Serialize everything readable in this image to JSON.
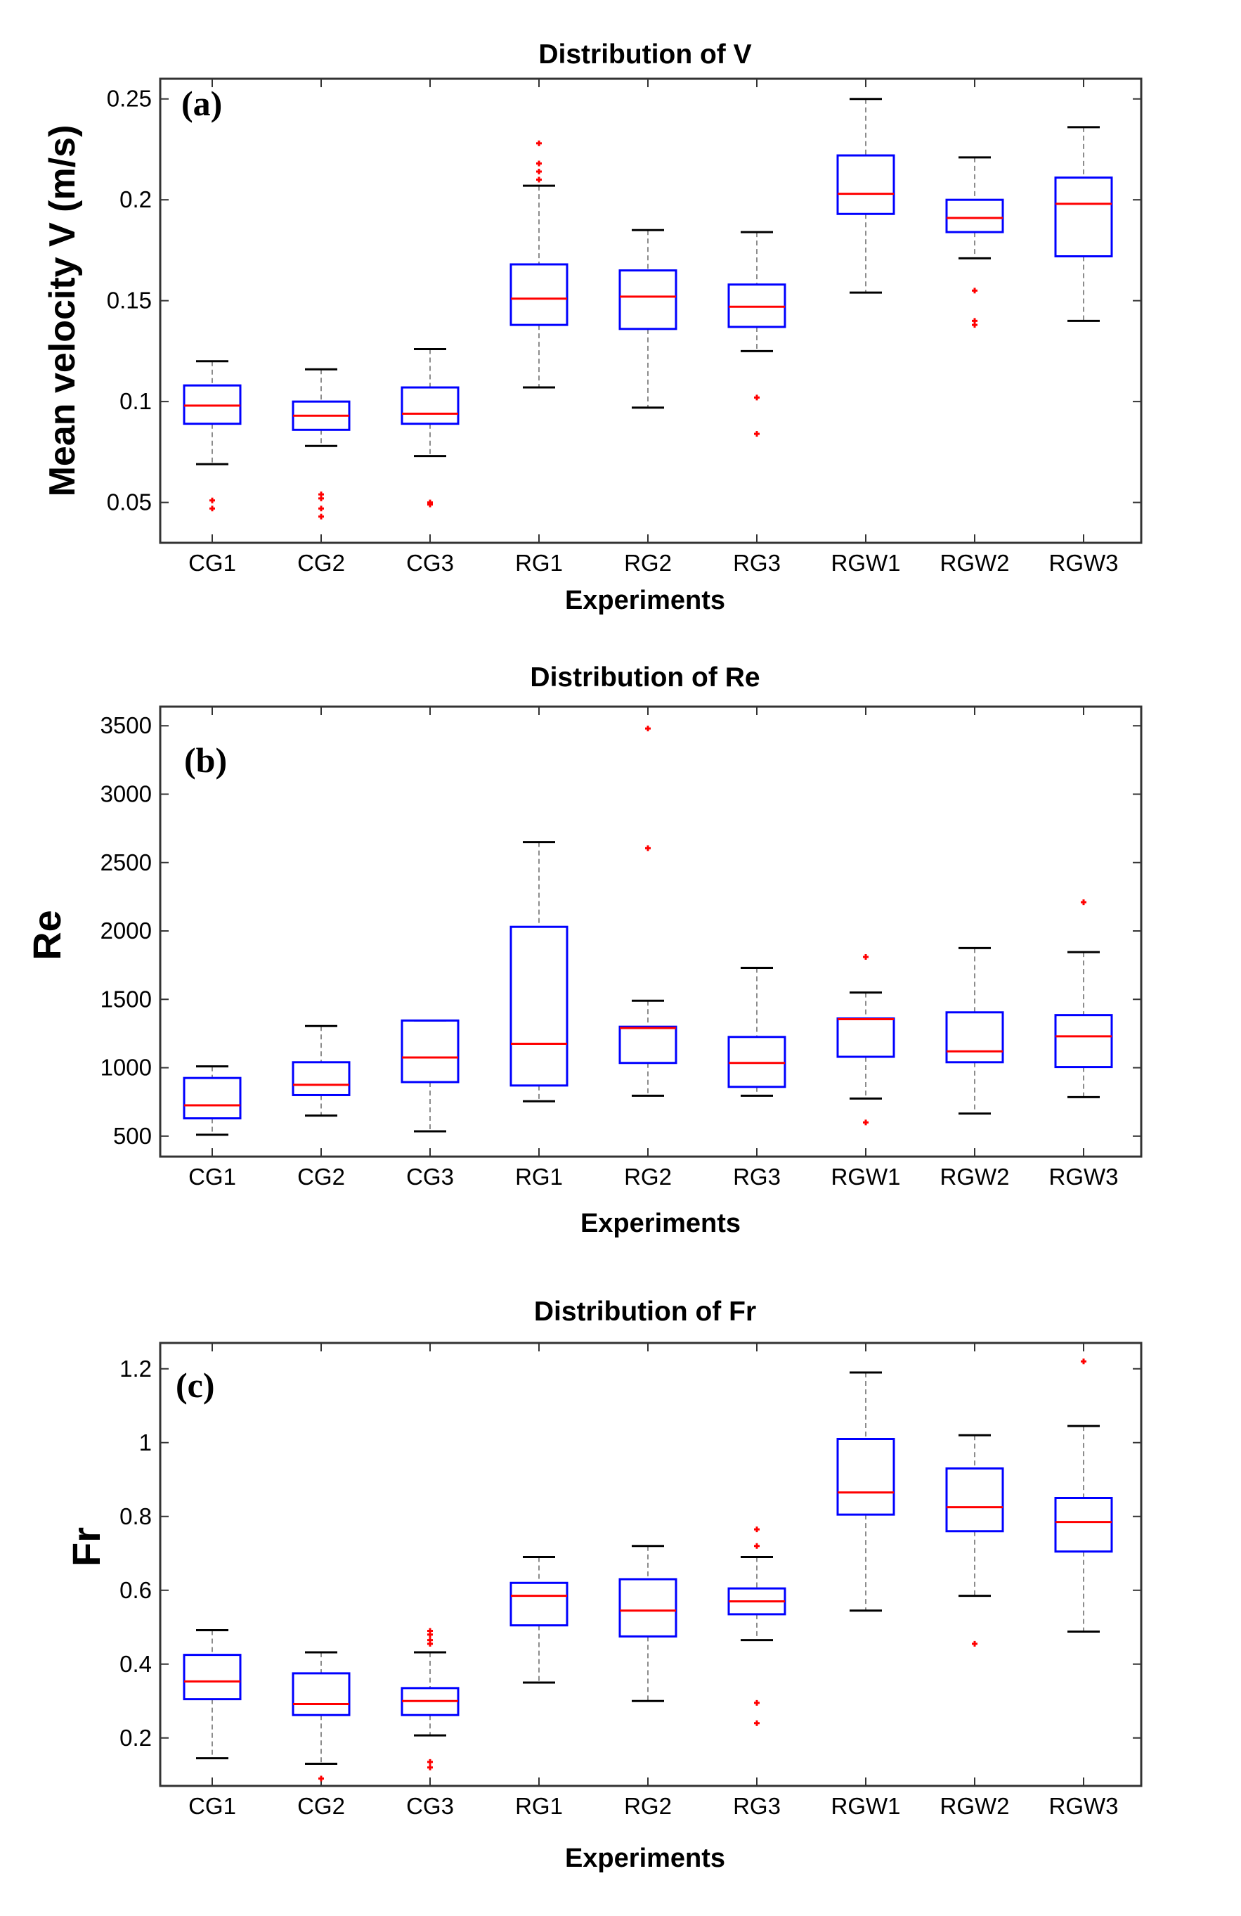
{
  "chart_data": [
    {
      "type": "box",
      "title": "Distribution of V",
      "panel_label": "(a)",
      "xlabel": "Experiments",
      "ylabel": "Mean velocity V (m/s)",
      "ylim": [
        0.03,
        0.26
      ],
      "yticks": [
        0.05,
        0.1,
        0.15,
        0.2,
        0.25
      ],
      "ytick_labels": [
        "0.05",
        "0.1",
        "0.15",
        "0.2",
        "0.25"
      ],
      "categories": [
        "CG1",
        "CG2",
        "CG3",
        "RG1",
        "RG2",
        "RG3",
        "RGW1",
        "RGW2",
        "RGW3"
      ],
      "boxes": [
        {
          "whisker_low": 0.069,
          "q1": 0.089,
          "median": 0.098,
          "q3": 0.108,
          "whisker_high": 0.12,
          "outliers": [
            0.051,
            0.047
          ]
        },
        {
          "whisker_low": 0.078,
          "q1": 0.086,
          "median": 0.093,
          "q3": 0.1,
          "whisker_high": 0.116,
          "outliers": [
            0.054,
            0.052,
            0.047,
            0.043
          ]
        },
        {
          "whisker_low": 0.073,
          "q1": 0.089,
          "median": 0.094,
          "q3": 0.107,
          "whisker_high": 0.126,
          "outliers": [
            0.05,
            0.049
          ]
        },
        {
          "whisker_low": 0.107,
          "q1": 0.138,
          "median": 0.151,
          "q3": 0.168,
          "whisker_high": 0.207,
          "outliers": [
            0.228,
            0.218,
            0.214,
            0.21
          ]
        },
        {
          "whisker_low": 0.097,
          "q1": 0.136,
          "median": 0.152,
          "q3": 0.165,
          "whisker_high": 0.185,
          "outliers": []
        },
        {
          "whisker_low": 0.125,
          "q1": 0.137,
          "median": 0.147,
          "q3": 0.158,
          "whisker_high": 0.184,
          "outliers": [
            0.102,
            0.084
          ]
        },
        {
          "whisker_low": 0.154,
          "q1": 0.193,
          "median": 0.203,
          "q3": 0.222,
          "whisker_high": 0.25,
          "outliers": []
        },
        {
          "whisker_low": 0.171,
          "q1": 0.184,
          "median": 0.191,
          "q3": 0.2,
          "whisker_high": 0.221,
          "outliers": [
            0.155,
            0.14,
            0.138
          ]
        },
        {
          "whisker_low": 0.14,
          "q1": 0.172,
          "median": 0.198,
          "q3": 0.211,
          "whisker_high": 0.236,
          "outliers": []
        }
      ]
    },
    {
      "type": "box",
      "title": "Distribution of Re",
      "panel_label": "(b)",
      "xlabel": "Experiments",
      "ylabel": "Re",
      "ylim": [
        350,
        3640
      ],
      "yticks": [
        500,
        1000,
        1500,
        2000,
        2500,
        3000,
        3500
      ],
      "ytick_labels": [
        "500",
        "1000",
        "1500",
        "2000",
        "2500",
        "3000",
        "3500"
      ],
      "categories": [
        "CG1",
        "CG2",
        "CG3",
        "RG1",
        "RG2",
        "RG3",
        "RGW1",
        "RGW2",
        "RGW3"
      ],
      "boxes": [
        {
          "whisker_low": 510,
          "q1": 630,
          "median": 725,
          "q3": 925,
          "whisker_high": 1010,
          "outliers": []
        },
        {
          "whisker_low": 650,
          "q1": 800,
          "median": 875,
          "q3": 1040,
          "whisker_high": 1305,
          "outliers": []
        },
        {
          "whisker_low": 535,
          "q1": 895,
          "median": 1075,
          "q3": 1345,
          "whisker_high": 1345,
          "outliers": []
        },
        {
          "whisker_low": 755,
          "q1": 870,
          "median": 1175,
          "q3": 2030,
          "whisker_high": 2650,
          "outliers": []
        },
        {
          "whisker_low": 795,
          "q1": 1035,
          "median": 1290,
          "q3": 1300,
          "whisker_high": 1490,
          "outliers": [
            3480,
            2605
          ]
        },
        {
          "whisker_low": 795,
          "q1": 860,
          "median": 1035,
          "q3": 1225,
          "whisker_high": 1730,
          "outliers": []
        },
        {
          "whisker_low": 775,
          "q1": 1080,
          "median": 1355,
          "q3": 1360,
          "whisker_high": 1550,
          "outliers": [
            1810,
            600
          ]
        },
        {
          "whisker_low": 665,
          "q1": 1040,
          "median": 1120,
          "q3": 1405,
          "whisker_high": 1875,
          "outliers": []
        },
        {
          "whisker_low": 785,
          "q1": 1005,
          "median": 1230,
          "q3": 1385,
          "whisker_high": 1845,
          "outliers": [
            2210
          ]
        }
      ]
    },
    {
      "type": "box",
      "title": "Distribution of Fr",
      "panel_label": "(c)",
      "xlabel": "Experiments",
      "ylabel": "Fr",
      "ylim": [
        0.07,
        1.27
      ],
      "yticks": [
        0.2,
        0.4,
        0.6,
        0.8,
        1,
        1.2
      ],
      "ytick_labels": [
        "0.2",
        "0.4",
        "0.6",
        "0.8",
        "1",
        "1.2"
      ],
      "categories": [
        "CG1",
        "CG2",
        "CG3",
        "RG1",
        "RG2",
        "RG3",
        "RGW1",
        "RGW2",
        "RGW3"
      ],
      "boxes": [
        {
          "whisker_low": 0.145,
          "q1": 0.305,
          "median": 0.353,
          "q3": 0.425,
          "whisker_high": 0.492,
          "outliers": []
        },
        {
          "whisker_low": 0.13,
          "q1": 0.262,
          "median": 0.292,
          "q3": 0.375,
          "whisker_high": 0.432,
          "outliers": [
            0.09
          ]
        },
        {
          "whisker_low": 0.207,
          "q1": 0.262,
          "median": 0.3,
          "q3": 0.335,
          "whisker_high": 0.432,
          "outliers": [
            0.49,
            0.48,
            0.465,
            0.455,
            0.135,
            0.12
          ]
        },
        {
          "whisker_low": 0.35,
          "q1": 0.505,
          "median": 0.585,
          "q3": 0.62,
          "whisker_high": 0.69,
          "outliers": []
        },
        {
          "whisker_low": 0.3,
          "q1": 0.475,
          "median": 0.545,
          "q3": 0.63,
          "whisker_high": 0.72,
          "outliers": []
        },
        {
          "whisker_low": 0.465,
          "q1": 0.535,
          "median": 0.57,
          "q3": 0.605,
          "whisker_high": 0.69,
          "outliers": [
            0.765,
            0.72,
            0.295,
            0.24
          ]
        },
        {
          "whisker_low": 0.545,
          "q1": 0.805,
          "median": 0.865,
          "q3": 1.01,
          "whisker_high": 1.19,
          "outliers": []
        },
        {
          "whisker_low": 0.585,
          "q1": 0.76,
          "median": 0.825,
          "q3": 0.93,
          "whisker_high": 1.02,
          "outliers": [
            0.455
          ]
        },
        {
          "whisker_low": 0.488,
          "q1": 0.705,
          "median": 0.785,
          "q3": 0.85,
          "whisker_high": 1.045,
          "outliers": [
            1.22
          ]
        }
      ]
    }
  ],
  "colors": {
    "box": "#0000ff",
    "median": "#ff0000",
    "outlier": "#ff0000",
    "whisker": "#000000",
    "whisker_line": "#8c8c8c",
    "axes": "#333333",
    "background": "#ffffff"
  }
}
